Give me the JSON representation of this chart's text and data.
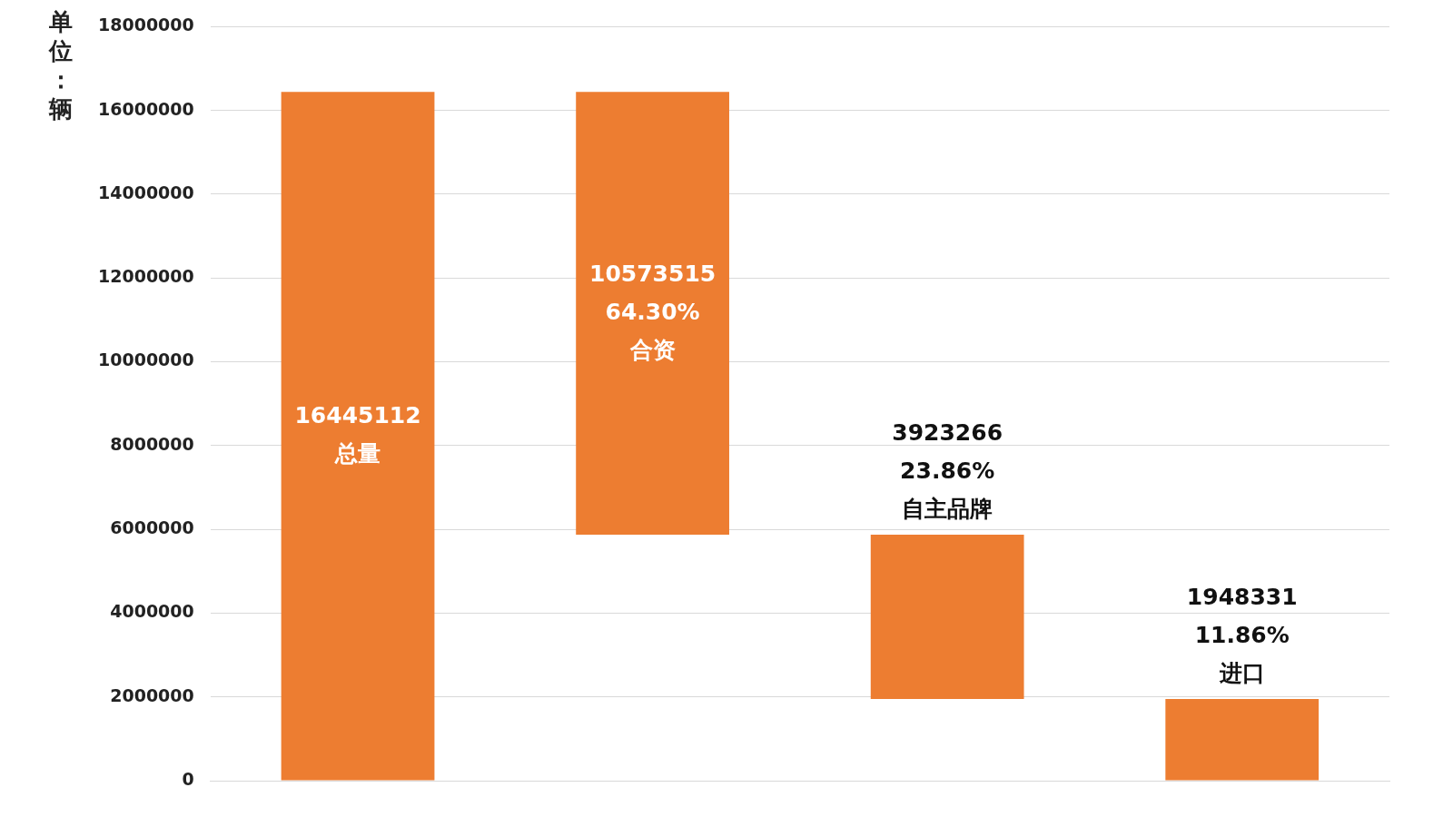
{
  "chart_data": {
    "type": "bar",
    "ylabel": "单位：辆",
    "categories": [
      null,
      null,
      null,
      null
    ],
    "values": [
      16445112,
      10573515,
      3923266,
      1948331
    ],
    "base": [
      0,
      5871597,
      1948331,
      0
    ],
    "color": "#ed7d31",
    "value_labels": [
      "16445112\n总量",
      "10573515\n64.30%\n合资",
      "3923266\n23.86%\n自主品牌",
      "1948331\n11.86%\n进口"
    ],
    "ylim": [
      0,
      18000000
    ],
    "yticks": [
      0,
      2000000,
      4000000,
      6000000,
      8000000,
      10000000,
      12000000,
      14000000,
      16000000,
      18000000
    ],
    "grid": "y",
    "legend": false,
    "tick_labels": "y"
  }
}
